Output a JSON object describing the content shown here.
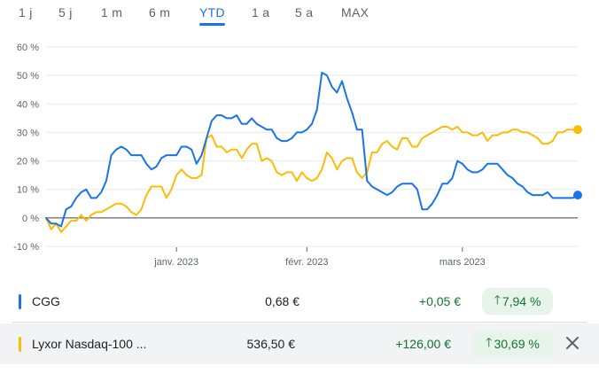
{
  "tabs": [
    {
      "label": "1 j",
      "active": false
    },
    {
      "label": "5 j",
      "active": false
    },
    {
      "label": "1 m",
      "active": false
    },
    {
      "label": "6 m",
      "active": false
    },
    {
      "label": "YTD",
      "active": true
    },
    {
      "label": "1 a",
      "active": false
    },
    {
      "label": "5 a",
      "active": false
    },
    {
      "label": "MAX",
      "active": false
    }
  ],
  "chart_data": {
    "type": "line",
    "ylim": [
      -10,
      60
    ],
    "yticks": [
      "-10 %",
      "0 %",
      "10 %",
      "20 %",
      "30 %",
      "40 %",
      "50 %",
      "60 %"
    ],
    "ytick_values": [
      -10,
      0,
      10,
      20,
      30,
      40,
      50,
      60
    ],
    "xticks": [
      {
        "label": "janv. 2023",
        "index": 26
      },
      {
        "label": "févr. 2023",
        "index": 52
      },
      {
        "label": "mars 2023",
        "index": 83
      }
    ],
    "x_count": 107,
    "grid": true,
    "series": [
      {
        "name": "CGG",
        "color": "#1a73e8",
        "values": [
          0,
          -2,
          -2,
          -3,
          3,
          4,
          7,
          9,
          10,
          7,
          7,
          9,
          13,
          22,
          24,
          25,
          24,
          22,
          22,
          22,
          19,
          17,
          18,
          21,
          22,
          22,
          22,
          25,
          25,
          24,
          19,
          22,
          28,
          34,
          36,
          36,
          35,
          35,
          36,
          33,
          33,
          35,
          33,
          32,
          31,
          31,
          28,
          27,
          27,
          28,
          30,
          30,
          31,
          33,
          38,
          51,
          50,
          46,
          44,
          48,
          42,
          37,
          31,
          31,
          13,
          11,
          10,
          9,
          8,
          9,
          11,
          12,
          12,
          12,
          10,
          3,
          3,
          5,
          8,
          12,
          12,
          14,
          20,
          19,
          17,
          16,
          16,
          17,
          19,
          19,
          19,
          17,
          15,
          14,
          12,
          11,
          9,
          8,
          8,
          8,
          9,
          7,
          7,
          7,
          7,
          7,
          8
        ]
      },
      {
        "name": "Lyxor Nasdaq-100 ...",
        "color": "#fbbc04",
        "values": [
          0,
          -4,
          -2,
          -5,
          -3,
          -1,
          -1,
          1,
          -1,
          1,
          2,
          2,
          3,
          4,
          5,
          5,
          4,
          2,
          1,
          3,
          8,
          11,
          11,
          11,
          7,
          10,
          15,
          17,
          15,
          14,
          14,
          15,
          28,
          29,
          25,
          25,
          23,
          24,
          24,
          21,
          24,
          26,
          26,
          20,
          21,
          20,
          16,
          15,
          16,
          16,
          13,
          16,
          14,
          13,
          14,
          17,
          23,
          21,
          17,
          20,
          21,
          21,
          16,
          14,
          16,
          23,
          23,
          26,
          27,
          25,
          24,
          28,
          28,
          25,
          25,
          28,
          29,
          30,
          31,
          32,
          32,
          31,
          32,
          30,
          30,
          29,
          29,
          30,
          27,
          29,
          29,
          30,
          30,
          31,
          31,
          30,
          30,
          29,
          28,
          26,
          26,
          27,
          30,
          30,
          31,
          31,
          31
        ]
      }
    ]
  },
  "rows": [
    {
      "name": "CGG",
      "price": "0,68 €",
      "change": "+0,05 €",
      "percent": "7,94 %",
      "color": "#1a73e8"
    },
    {
      "name": "Lyxor Nasdaq-100 ...",
      "price": "536,50 €",
      "change": "+126,00 €",
      "percent": "30,69 %",
      "color": "#fbbc04"
    }
  ],
  "icons": {
    "up_arrow": "arrow-up-icon",
    "close": "close-icon"
  }
}
